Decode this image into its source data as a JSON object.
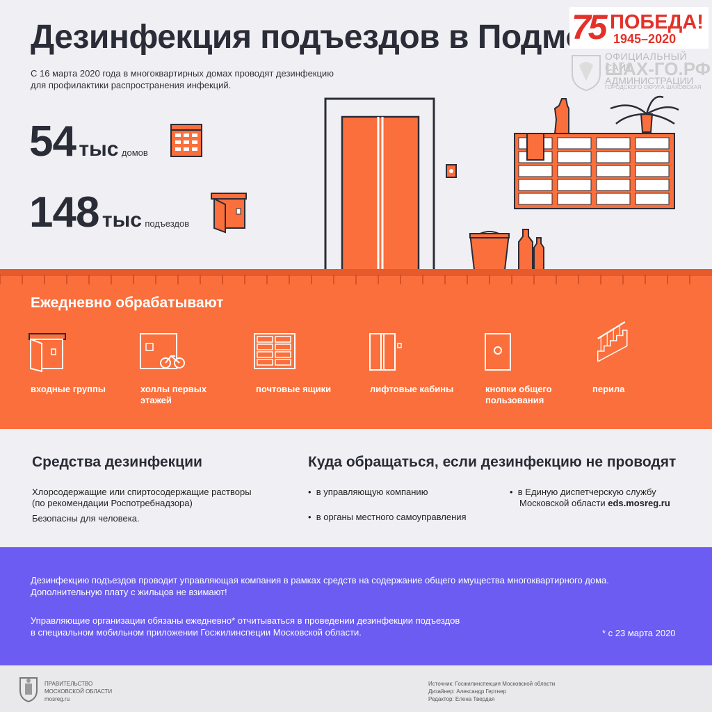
{
  "header": {
    "title": "Дезинфекция подъездов в Подмо",
    "subtitle_line1": "С 16 марта 2020 года в многоквартирных домах проводят дезинфекцию",
    "subtitle_line2": "для профилактики распространения инфекций."
  },
  "logo": {
    "number": "75",
    "word": "ПОБЕДА!",
    "years": "1945–2020"
  },
  "watermark": {
    "line1": "ОФИЦИАЛЬНЫЙ САЙТ",
    "line2": "ШАХ-ГО.РФ",
    "line3": "АДМИНИСТРАЦИИ",
    "line4": "ГОРОДСКОГО ОКРУГА ШАХОВСКАЯ"
  },
  "stats": [
    {
      "number": "54",
      "unit": "тыс",
      "label": "домов"
    },
    {
      "number": "148",
      "unit": "тыс",
      "label": "подъездов"
    }
  ],
  "daily": {
    "title": "Ежедневно обрабатывают",
    "items": [
      {
        "line1": "входные группы",
        "line2": "",
        "icon": "entrance-door-icon"
      },
      {
        "line1": "холлы первых",
        "line2": "этажей",
        "icon": "hall-bicycle-icon"
      },
      {
        "line1": "почтовые ящики",
        "line2": "",
        "icon": "mailboxes-icon"
      },
      {
        "line1": "лифтовые кабины",
        "line2": "",
        "icon": "elevator-icon"
      },
      {
        "line1": "кнопки общего",
        "line2": "пользования",
        "icon": "button-panel-icon"
      },
      {
        "line1": "перила",
        "line2": "",
        "icon": "stair-railing-icon"
      }
    ]
  },
  "means": {
    "title": "Средства дезинфекции",
    "line1": "Хлорсодержащие или спиртосодержащие растворы",
    "line2": "(по рекомендации Роспотребнадзора)",
    "line3": "Безопасны для человека."
  },
  "contacts": {
    "title": "Куда обращаться, если дезинфекцию не проводят",
    "bullet1": "в управляющую компанию",
    "bullet2": "в органы местного самоуправления",
    "bullet3_line1": "в Единую диспетчерскую службу",
    "bullet3_line2": "Московской области",
    "bullet3_link": "eds.mosreg.ru"
  },
  "notice": {
    "p1_line1": "Дезинфекцию подъездов проводит управляющая компания в рамках средств на содержание общего имущества многоквартирного дома.",
    "p1_line2": "Дополнительную плату с жильцов не взимают!",
    "p2_line1": "Управляющие организации обязаны ежедневно* отчитываться в проведении дезинфекции подъездов",
    "p2_line2": "в специальном мобильном приложении Госжилинспеции Московской области.",
    "footnote": "* с 23 марта 2020"
  },
  "footer": {
    "org_line1": "ПРАВИТЕЛЬСТВО",
    "org_line2": "МОСКОВСКОЙ ОБЛАСТИ",
    "org_line3": "mosreg.ru",
    "source": "Источник: Госжилинспекция Московской области",
    "designer": "Дизайнер: Александр Гертнер",
    "editor": "Редактор: Елена Твердая"
  },
  "colors": {
    "orange": "#fb6f3c",
    "dark_orange": "#e65a2c",
    "purple": "#6c5cf2",
    "dark_text": "#2a2c37",
    "logo_red": "#e33129"
  }
}
